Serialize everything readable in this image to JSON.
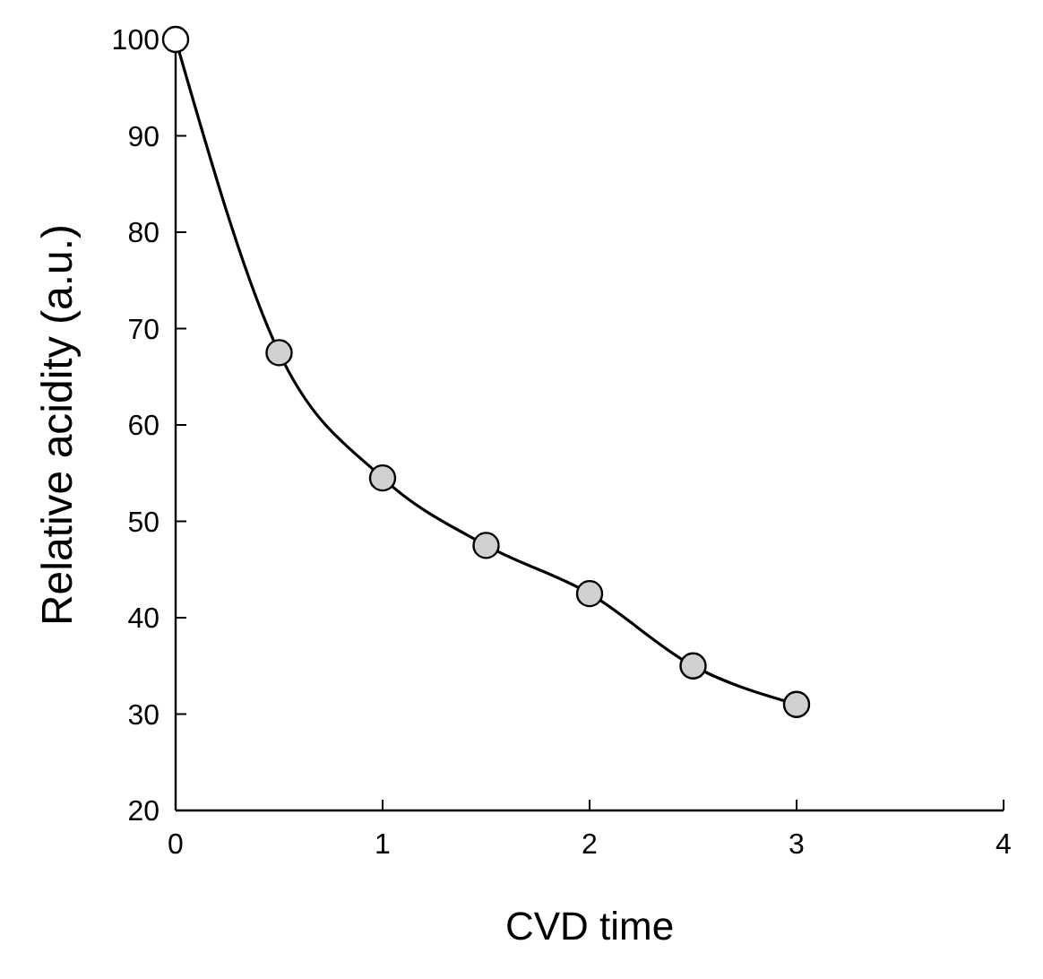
{
  "chart_data": {
    "type": "line",
    "xlabel": "CVD time",
    "ylabel": "Relative acidity (a.u.)",
    "x": [
      0,
      0.5,
      1,
      1.5,
      2,
      2.5,
      3
    ],
    "series": [
      {
        "color": "#000000",
        "values": [
          100,
          67.5,
          54.5,
          47.5,
          42.5,
          35,
          31
        ],
        "colors": [
          "#ffffff",
          "#d0d0d0",
          "#d0d0d0",
          "#d0d0d0",
          "#d0d0d0",
          "#d0d0d0",
          "#d0d0d0"
        ]
      }
    ],
    "xlim": [
      0,
      4
    ],
    "xticks": [
      0,
      1,
      2,
      3,
      4
    ],
    "ylim": [
      20,
      100
    ],
    "yticks": [
      20,
      30,
      40,
      50,
      60,
      70,
      80,
      90,
      100
    ],
    "marker": "circle",
    "line_style": "solid",
    "grid": false
  }
}
